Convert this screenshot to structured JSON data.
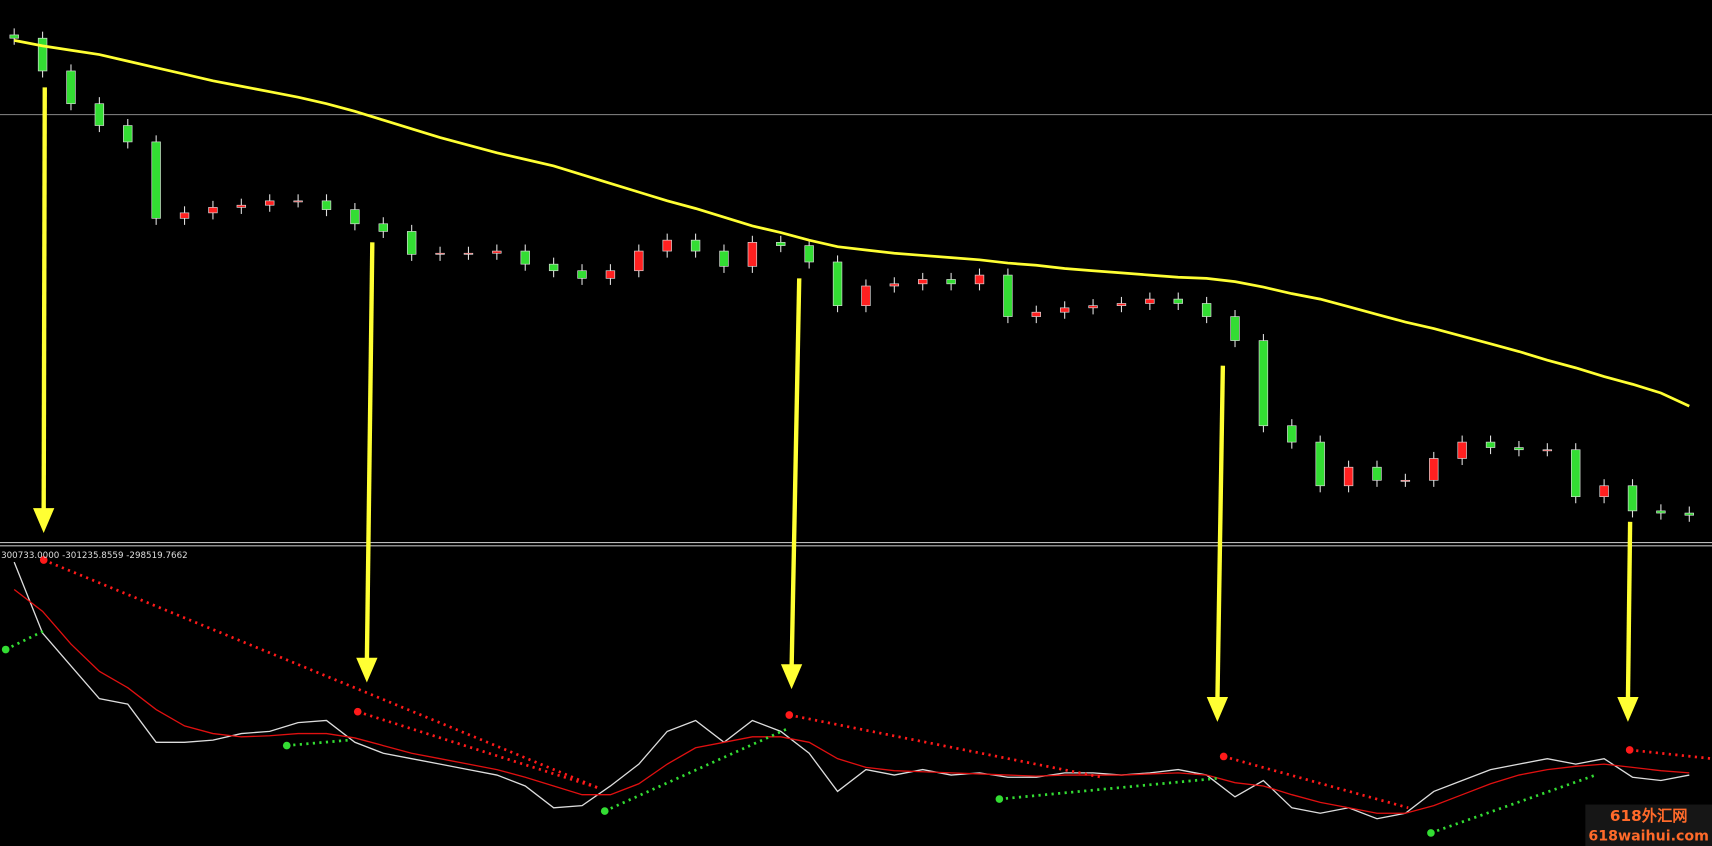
{
  "chart_data": [
    {
      "type": "candlestick",
      "xlim": [
        -0.5,
        59.8
      ],
      "ylim": [
        0,
        500
      ],
      "up_color": "#ff2020",
      "down_color": "#33dd33",
      "open": [
        468,
        465,
        435,
        405,
        385,
        370,
        300,
        305,
        310,
        312,
        316,
        316,
        308,
        295,
        288,
        267,
        268,
        268,
        270,
        258,
        252,
        245,
        252,
        270,
        280,
        270,
        256,
        278,
        275,
        260,
        220,
        238,
        240,
        244,
        240,
        248,
        210,
        214,
        218,
        220,
        222,
        226,
        222,
        210,
        188,
        110,
        95,
        55,
        72,
        60,
        60,
        80,
        95,
        90,
        88,
        88,
        45,
        55,
        32,
        30
      ],
      "high": [
        474,
        471,
        441,
        411,
        391,
        376,
        311,
        316,
        318,
        322,
        322,
        322,
        314,
        301,
        294,
        274,
        274,
        276,
        276,
        264,
        258,
        258,
        276,
        286,
        286,
        276,
        284,
        284,
        281,
        266,
        244,
        246,
        250,
        250,
        254,
        254,
        220,
        224,
        226,
        228,
        232,
        232,
        228,
        216,
        194,
        116,
        101,
        78,
        78,
        66,
        86,
        101,
        101,
        96,
        94,
        94,
        61,
        61,
        38,
        36
      ],
      "low": [
        459,
        429,
        399,
        379,
        364,
        294,
        294,
        299,
        304,
        306,
        310,
        302,
        289,
        282,
        261,
        261,
        262,
        262,
        252,
        246,
        239,
        239,
        246,
        264,
        264,
        250,
        250,
        269,
        254,
        214,
        214,
        232,
        234,
        234,
        234,
        204,
        204,
        208,
        212,
        214,
        216,
        216,
        204,
        182,
        104,
        89,
        49,
        49,
        54,
        54,
        54,
        74,
        84,
        82,
        82,
        39,
        39,
        26,
        24,
        22
      ],
      "close": [
        465,
        435,
        405,
        385,
        370,
        300,
        305,
        310,
        312,
        316,
        316,
        308,
        295,
        288,
        267,
        268,
        268,
        270,
        258,
        252,
        245,
        252,
        270,
        280,
        270,
        256,
        278,
        275,
        260,
        220,
        238,
        240,
        244,
        240,
        248,
        210,
        214,
        218,
        220,
        222,
        226,
        222,
        210,
        188,
        110,
        95,
        55,
        72,
        60,
        60,
        80,
        95,
        90,
        88,
        88,
        45,
        55,
        32,
        30,
        28
      ],
      "series": [
        {
          "color": "#ffff33",
          "values": [
            463,
            458,
            454,
            450,
            444,
            438,
            432,
            426,
            421,
            416,
            411,
            405,
            398,
            390,
            382,
            374,
            367,
            360,
            354,
            348,
            340,
            332,
            324,
            316,
            309,
            301,
            293,
            287,
            280,
            274,
            271,
            268,
            266,
            264,
            262,
            259,
            257,
            254,
            252,
            250,
            248,
            246,
            245,
            242,
            237,
            231,
            226,
            219,
            212,
            205,
            199,
            192,
            185,
            178,
            170,
            163,
            155,
            148,
            140,
            128
          ]
        }
      ]
    },
    {
      "type": "line",
      "indicator_label": "300733.0000 -301235.8559 -298519.7662",
      "xlim": [
        -0.5,
        59.8
      ],
      "ylim": [
        0,
        275
      ],
      "series": [
        {
          "color": "#dddddd",
          "values": [
            260,
            195,
            165,
            135,
            130,
            95,
            95,
            97,
            103,
            105,
            113,
            115,
            95,
            85,
            80,
            75,
            70,
            65,
            55,
            35,
            37,
            55,
            75,
            105,
            115,
            95,
            115,
            105,
            85,
            50,
            70,
            65,
            70,
            65,
            67,
            63,
            63,
            67,
            67,
            65,
            67,
            70,
            65,
            45,
            60,
            35,
            30,
            35,
            25,
            30,
            50,
            60,
            70,
            75,
            80,
            75,
            80,
            63,
            60,
            65
          ]
        },
        {
          "color": "#e01010",
          "values": [
            235,
            215,
            185,
            160,
            145,
            125,
            110,
            103,
            100,
            101,
            103,
            103,
            99,
            92,
            85,
            80,
            75,
            70,
            63,
            55,
            47,
            47,
            57,
            75,
            90,
            95,
            100,
            100,
            95,
            80,
            72,
            69,
            68,
            67,
            66,
            65,
            64,
            65,
            65,
            65,
            66,
            67,
            65,
            58,
            55,
            47,
            40,
            35,
            30,
            30,
            37,
            47,
            57,
            65,
            70,
            73,
            75,
            72,
            69,
            67
          ]
        }
      ],
      "dotted_lines": [
        {
          "color": "#ff1a1a",
          "x": [
            1.04,
            20.6
          ],
          "values": [
            262,
            53
          ]
        },
        {
          "color": "#ff1a1a",
          "x": [
            12.1,
            20.6
          ],
          "values": [
            123,
            53
          ]
        },
        {
          "color": "#ff1a1a",
          "x": [
            27.3,
            38.3
          ],
          "values": [
            120,
            63
          ]
        },
        {
          "color": "#ff1a1a",
          "x": [
            42.6,
            49.1
          ],
          "values": [
            82,
            35
          ]
        },
        {
          "color": "#ff1a1a",
          "x": [
            56.9,
            59.8
          ],
          "values": [
            88,
            80
          ]
        },
        {
          "color": "#33dd33",
          "x": [
            -0.3,
            1.04
          ],
          "values": [
            180,
            197
          ]
        },
        {
          "color": "#33dd33",
          "x": [
            9.6,
            11.8
          ],
          "values": [
            92,
            97
          ]
        },
        {
          "color": "#33dd33",
          "x": [
            20.8,
            27.2
          ],
          "values": [
            32,
            107
          ]
        },
        {
          "color": "#33dd33",
          "x": [
            34.7,
            42.4
          ],
          "values": [
            43,
            62
          ]
        },
        {
          "color": "#33dd33",
          "x": [
            49.9,
            55.7
          ],
          "values": [
            12,
            65
          ]
        }
      ]
    }
  ],
  "watermark": {
    "title": "618外汇网",
    "url": "618waihui.com"
  }
}
